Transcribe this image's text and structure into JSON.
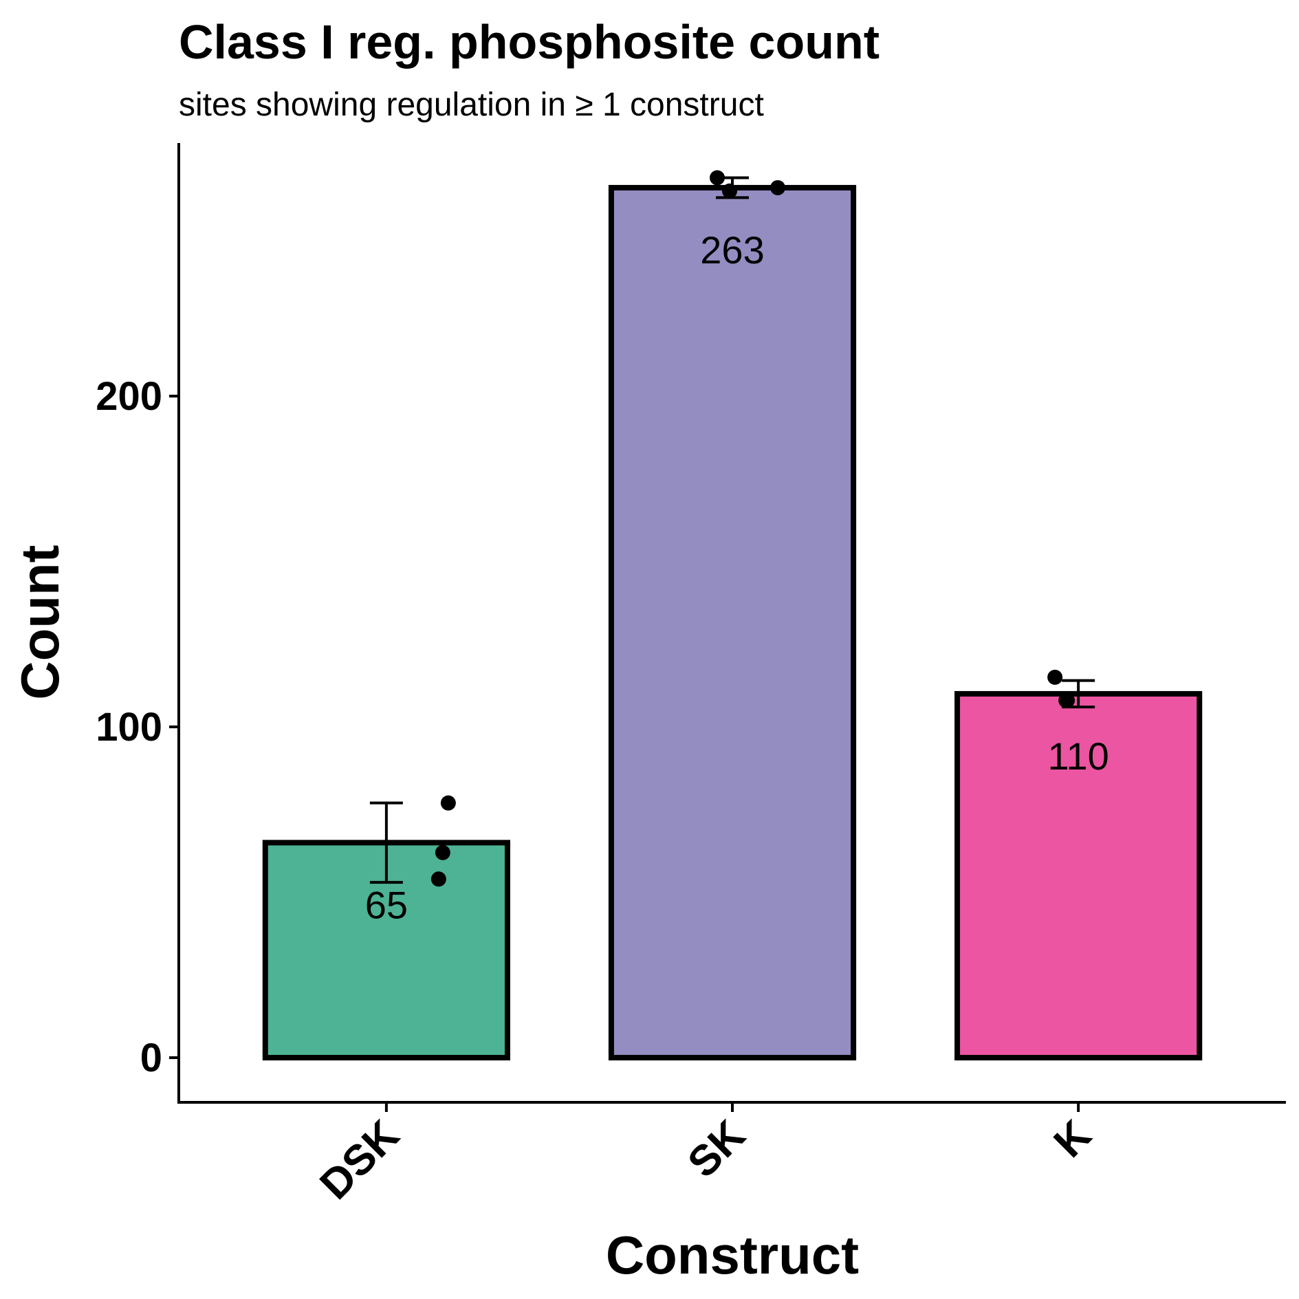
{
  "chart_data": {
    "type": "bar",
    "title": "Class I reg. phosphosite count",
    "subtitle": "sites showing regulation in ≥ 1 construct",
    "xlabel": "Construct",
    "ylabel": "Count",
    "categories": [
      "DSK",
      "SK",
      "K"
    ],
    "values": [
      65,
      263,
      110
    ],
    "value_labels": [
      "65",
      "263",
      "110"
    ],
    "error": [
      {
        "low": 53,
        "high": 77
      },
      {
        "low": 260,
        "high": 266
      },
      {
        "low": 106,
        "high": 114
      }
    ],
    "points": [
      [
        77,
        62,
        54
      ],
      [
        266,
        262,
        263
      ],
      [
        115,
        108,
        108
      ]
    ],
    "colors": [
      "#4db394",
      "#938dc2",
      "#ec55a1"
    ],
    "ylim": [
      -13.5,
      276.5
    ],
    "yticks": [
      0,
      100,
      200
    ],
    "ytick_labels": [
      "0",
      "100",
      "200"
    ],
    "grid": false,
    "legend": "none"
  }
}
